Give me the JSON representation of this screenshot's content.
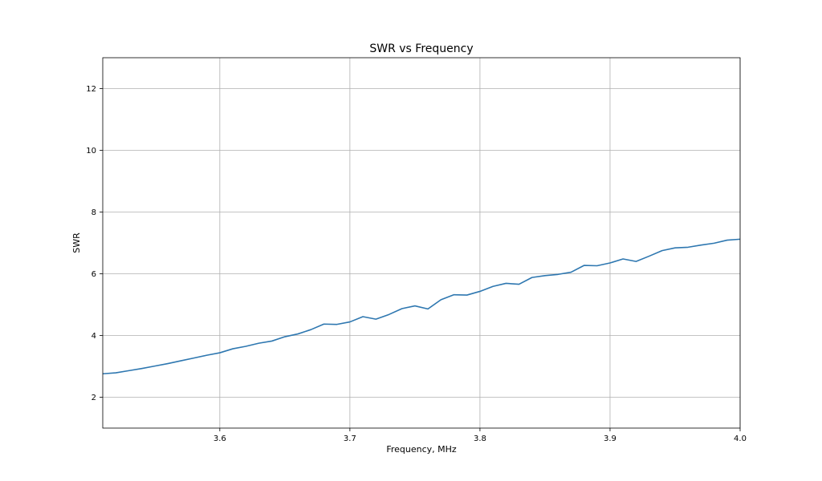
{
  "chart_data": {
    "type": "line",
    "title": "SWR vs Frequency",
    "xlabel": "Frequency, MHz",
    "ylabel": "SWR",
    "xlim": [
      3.51,
      4.0
    ],
    "ylim": [
      1.0,
      13.0
    ],
    "xticks": [
      3.6,
      3.7,
      3.8,
      3.9,
      4.0
    ],
    "xtick_labels": [
      "3.6",
      "3.7",
      "3.8",
      "3.9",
      "4.0"
    ],
    "yticks": [
      2,
      4,
      6,
      8,
      10,
      12
    ],
    "ytick_labels": [
      "2",
      "4",
      "6",
      "8",
      "10",
      "12"
    ],
    "grid": true,
    "line_color": "#2e77b0",
    "series": [
      {
        "x": [
          3.51,
          3.52,
          3.53,
          3.54,
          3.55,
          3.56,
          3.57,
          3.58,
          3.59,
          3.6,
          3.61,
          3.62,
          3.63,
          3.64,
          3.65,
          3.66,
          3.67,
          3.68,
          3.69,
          3.7,
          3.71,
          3.72,
          3.73,
          3.74,
          3.75,
          3.76,
          3.77,
          3.78,
          3.79,
          3.8,
          3.81,
          3.82,
          3.83,
          3.84,
          3.85,
          3.86,
          3.87,
          3.88,
          3.89,
          3.9,
          3.91,
          3.92,
          3.93,
          3.94,
          3.95,
          3.96,
          3.97,
          3.98,
          3.99,
          4.0
        ],
        "y": [
          2.76,
          2.79,
          2.86,
          2.93,
          3.01,
          3.09,
          3.18,
          3.27,
          3.36,
          3.44,
          3.57,
          3.65,
          3.75,
          3.82,
          3.96,
          4.05,
          4.19,
          4.37,
          4.36,
          4.44,
          4.61,
          4.53,
          4.68,
          4.87,
          4.96,
          4.86,
          5.16,
          5.32,
          5.31,
          5.43,
          5.59,
          5.69,
          5.66,
          5.88,
          5.94,
          5.98,
          6.05,
          6.27,
          6.26,
          6.35,
          6.48,
          6.4,
          6.57,
          6.75,
          6.84,
          6.86,
          6.93,
          6.99,
          7.09,
          7.12
        ]
      }
    ]
  }
}
